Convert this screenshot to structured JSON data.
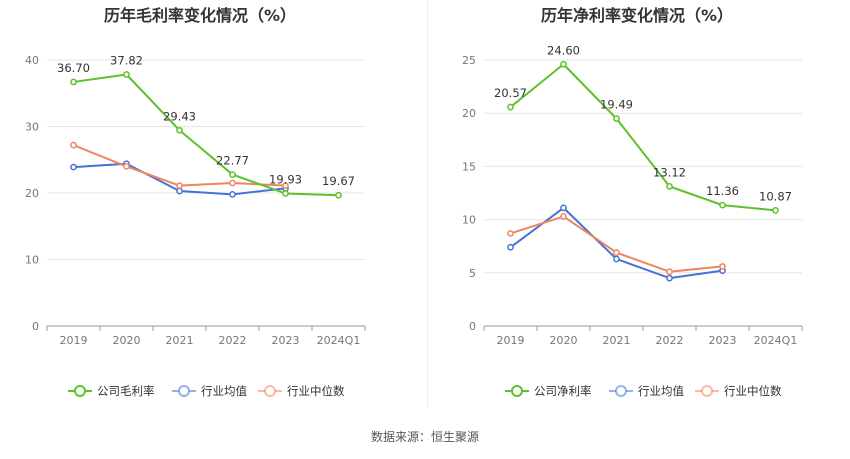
{
  "chart_data": [
    {
      "type": "line",
      "title": "历年毛利率变化情况（%）",
      "categories": [
        "2019",
        "2020",
        "2021",
        "2022",
        "2023",
        "2024Q1"
      ],
      "ylim": [
        0,
        40
      ],
      "yticks": [
        0,
        10,
        20,
        30,
        40
      ],
      "grid": true,
      "legend_placement": "bottom",
      "series": [
        {
          "name": "公司毛利率",
          "color": "#5cc12b",
          "values": [
            36.7,
            37.82,
            29.43,
            22.77,
            19.93,
            19.67
          ],
          "labels": [
            "36.70",
            "37.82",
            "29.43",
            "22.77",
            "19.93",
            "19.67"
          ]
        },
        {
          "name": "行业均值",
          "color": "#4472d6",
          "values": [
            23.9,
            24.4,
            20.3,
            19.8,
            20.7,
            null
          ]
        },
        {
          "name": "行业中位数",
          "color": "#f0845e",
          "values": [
            27.2,
            24.0,
            21.1,
            21.5,
            21.1,
            null
          ]
        }
      ]
    },
    {
      "type": "line",
      "title": "历年净利率变化情况（%）",
      "categories": [
        "2019",
        "2020",
        "2021",
        "2022",
        "2023",
        "2024Q1"
      ],
      "ylim": [
        0,
        25
      ],
      "yticks": [
        0,
        5,
        10,
        15,
        20,
        25
      ],
      "grid": true,
      "legend_placement": "bottom",
      "series": [
        {
          "name": "公司净利率",
          "color": "#5cc12b",
          "values": [
            20.57,
            24.6,
            19.49,
            13.12,
            11.36,
            10.87
          ],
          "labels": [
            "20.57",
            "24.60",
            "19.49",
            "13.12",
            "11.36",
            "10.87"
          ]
        },
        {
          "name": "行业均值",
          "color": "#4472d6",
          "values": [
            7.4,
            11.1,
            6.3,
            4.5,
            5.2,
            null
          ]
        },
        {
          "name": "行业中位数",
          "color": "#f0845e",
          "values": [
            8.7,
            10.3,
            6.9,
            5.1,
            5.6,
            null
          ]
        }
      ]
    }
  ],
  "footer": {
    "source": "数据来源：恒生聚源"
  }
}
